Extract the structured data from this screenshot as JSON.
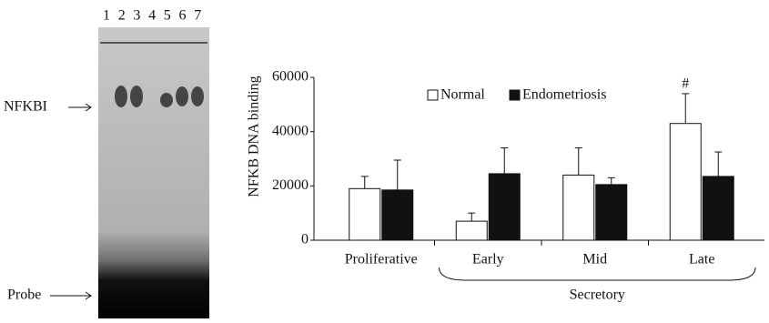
{
  "gel": {
    "lanes": [
      "1",
      "2",
      "3",
      "4",
      "5",
      "6",
      "7"
    ],
    "band_label": "NFKBI",
    "probe_label": "Probe"
  },
  "chart_data": {
    "type": "bar",
    "y_label": "NFKB DNA binding",
    "categories": [
      "Proliferative",
      "Early",
      "Mid",
      "Late"
    ],
    "group_label": "Secretory",
    "annotation": "#",
    "series": [
      {
        "name": "Normal",
        "color": "#ffffff",
        "values": [
          19000,
          7000,
          24000,
          43000
        ],
        "errors": [
          4500,
          3000,
          10000,
          11000
        ]
      },
      {
        "name": "Endometriosis",
        "color": "#111111",
        "values": [
          18500,
          24500,
          20500,
          23500
        ],
        "errors": [
          11000,
          9500,
          2500,
          9000
        ]
      }
    ],
    "ylim": [
      0,
      60000
    ],
    "yticks": [
      0,
      20000,
      40000,
      60000
    ],
    "grid": false
  }
}
